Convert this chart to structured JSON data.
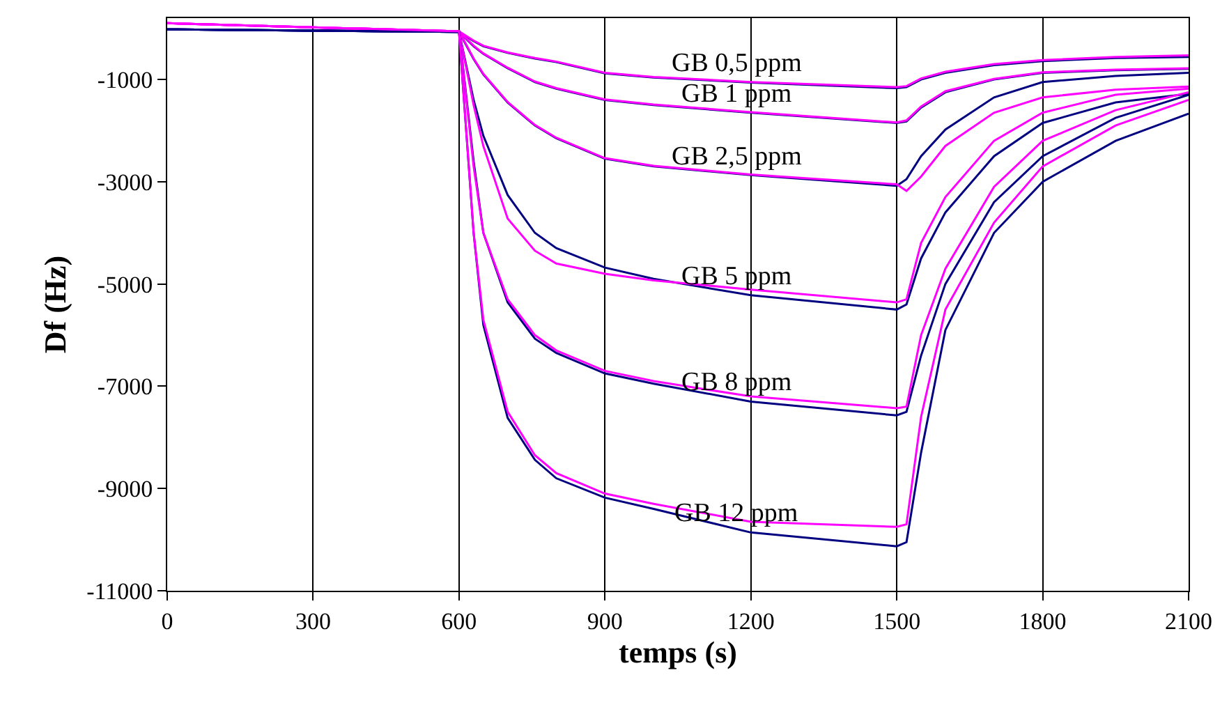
{
  "chart_data": {
    "type": "line",
    "xlabel": "temps (s)",
    "ylabel": "Df (Hz)",
    "x": [
      0,
      600,
      630,
      650,
      700,
      756,
      800,
      900,
      1000,
      1200,
      1500,
      1520,
      1550,
      1600,
      1700,
      1800,
      1950,
      2100
    ],
    "xlim": [
      0,
      2100
    ],
    "xticks": [
      0,
      300,
      600,
      900,
      1200,
      1500,
      1800,
      2100
    ],
    "ylim": [
      -11000,
      200
    ],
    "yticks": [
      -11000,
      -9000,
      -7000,
      -5000,
      -3000,
      -1000
    ],
    "grid": "x",
    "legend": false,
    "marker": "none",
    "line_style": "solid",
    "series": [
      {
        "name": "GB 0,5 ppm",
        "color": "#000080",
        "values": [
          -20,
          -70,
          -250,
          -350,
          -480,
          -590,
          -660,
          -880,
          -960,
          -1060,
          -1170,
          -1150,
          -1000,
          -870,
          -720,
          -640,
          -580,
          -560
        ]
      },
      {
        "color": "#ff00ff",
        "values": [
          100,
          -60,
          -240,
          -340,
          -470,
          -580,
          -650,
          -870,
          -950,
          -1050,
          -1150,
          -1130,
          -980,
          -850,
          -700,
          -620,
          -560,
          -530
        ]
      },
      {
        "name": "GB 1 ppm",
        "color": "#000080",
        "values": [
          -20,
          -70,
          -350,
          -500,
          -780,
          -1050,
          -1180,
          -1400,
          -1500,
          -1650,
          -1850,
          -1820,
          -1550,
          -1250,
          -1000,
          -870,
          -820,
          -790
        ]
      },
      {
        "color": "#ff00ff",
        "values": [
          100,
          -60,
          -340,
          -490,
          -770,
          -1040,
          -1170,
          -1390,
          -1490,
          -1640,
          -1840,
          -1800,
          -1530,
          -1230,
          -990,
          -860,
          -810,
          -780
        ]
      },
      {
        "name": "GB 2,5 ppm",
        "color": "#000080",
        "values": [
          -20,
          -70,
          -600,
          -900,
          -1450,
          -1900,
          -2150,
          -2550,
          -2700,
          -2870,
          -3080,
          -2950,
          -2500,
          -1980,
          -1350,
          -1050,
          -930,
          -870
        ]
      },
      {
        "color": "#ff00ff",
        "values": [
          100,
          -60,
          -590,
          -890,
          -1440,
          -1890,
          -2140,
          -2540,
          -2690,
          -2860,
          -3050,
          -3180,
          -2900,
          -2300,
          -1650,
          -1350,
          -1200,
          -1140
        ]
      },
      {
        "name": "GB 5 ppm",
        "color": "#000080",
        "values": [
          -20,
          -70,
          -1400,
          -2100,
          -3260,
          -4000,
          -4300,
          -4680,
          -4900,
          -5220,
          -5500,
          -5400,
          -4500,
          -3600,
          -2500,
          -1850,
          -1450,
          -1280
        ]
      },
      {
        "color": "#ff00ff",
        "values": [
          100,
          -60,
          -1500,
          -2300,
          -3720,
          -4350,
          -4600,
          -4800,
          -4930,
          -5110,
          -5360,
          -5300,
          -4200,
          -3300,
          -2200,
          -1650,
          -1300,
          -1180
        ]
      },
      {
        "name": "GB 8 ppm",
        "color": "#000080",
        "values": [
          -20,
          -70,
          -2600,
          -4000,
          -5360,
          -6070,
          -6350,
          -6750,
          -6950,
          -7300,
          -7570,
          -7500,
          -6400,
          -5000,
          -3400,
          -2500,
          -1750,
          -1300
        ]
      },
      {
        "color": "#ff00ff",
        "values": [
          100,
          -60,
          -2700,
          -4000,
          -5300,
          -6000,
          -6300,
          -6700,
          -6900,
          -7200,
          -7430,
          -7400,
          -6000,
          -4700,
          -3100,
          -2200,
          -1600,
          -1250
        ]
      },
      {
        "name": "GB 12 ppm",
        "color": "#000080",
        "values": [
          -20,
          -70,
          -4000,
          -5800,
          -7620,
          -8440,
          -8800,
          -9180,
          -9400,
          -9860,
          -10130,
          -10050,
          -8300,
          -5900,
          -4000,
          -3000,
          -2200,
          -1670
        ]
      },
      {
        "color": "#ff00ff",
        "values": [
          100,
          -60,
          -4000,
          -5700,
          -7500,
          -8350,
          -8700,
          -9100,
          -9300,
          -9650,
          -9750,
          -9700,
          -7600,
          -5500,
          -3800,
          -2700,
          -1900,
          -1400
        ]
      }
    ]
  }
}
